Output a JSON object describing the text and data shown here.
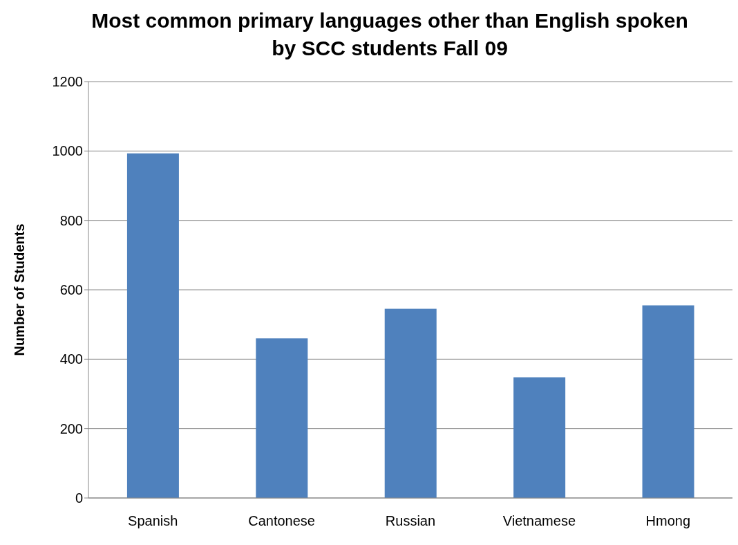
{
  "chart_data": {
    "type": "bar",
    "title": "Most common primary languages other than English spoken by SCC students Fall 09",
    "ylabel": "Number of Students",
    "categories": [
      "Spanish",
      "Cantonese",
      "Russian",
      "Vietnamese",
      "Hmong"
    ],
    "values": [
      993,
      460,
      545,
      348,
      555
    ],
    "color": "#4f81bd",
    "ylim": [
      0,
      1200
    ],
    "yticks": [
      0,
      200,
      400,
      600,
      800,
      1000,
      1200
    ],
    "grid": "y",
    "legend": false
  }
}
